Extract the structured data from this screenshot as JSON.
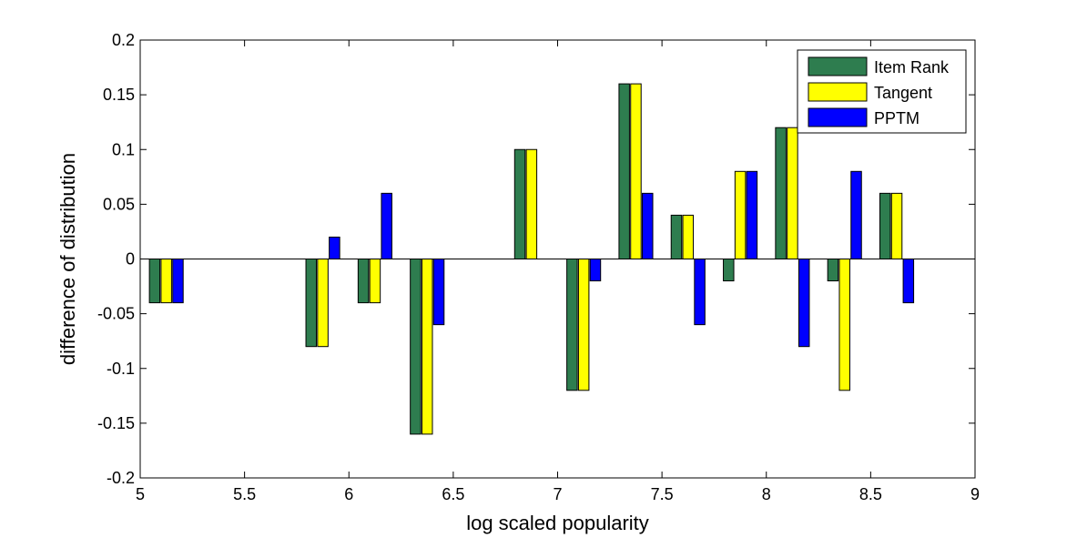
{
  "chart_data": {
    "type": "bar",
    "xlabel": "log scaled popularity",
    "ylabel": "difference of distribution",
    "xlim": [
      5,
      9
    ],
    "ylim": [
      -0.2,
      0.2
    ],
    "xticks": [
      "5",
      "5.5",
      "6",
      "6.5",
      "7",
      "7.5",
      "8",
      "8.5",
      "9"
    ],
    "yticks": [
      "-0.2",
      "-0.15",
      "-0.1",
      "-0.05",
      "0",
      "0.05",
      "0.1",
      "0.15",
      "0.2"
    ],
    "grid": false,
    "legend_position": "top-right",
    "group_centers": [
      5.125,
      5.875,
      6.125,
      6.375,
      6.875,
      7.125,
      7.375,
      7.625,
      7.875,
      8.125,
      8.375,
      8.625
    ],
    "series": [
      {
        "name": "Item Rank",
        "color": "#2e7d4f",
        "values": [
          -0.04,
          -0.08,
          -0.04,
          -0.16,
          0.1,
          -0.12,
          0.16,
          0.04,
          -0.02,
          0.12,
          -0.02,
          0.06
        ]
      },
      {
        "name": "Tangent",
        "color": "#ffff00",
        "values": [
          -0.04,
          -0.08,
          -0.04,
          -0.16,
          0.1,
          -0.12,
          0.16,
          0.04,
          0.08,
          0.12,
          -0.12,
          0.06
        ]
      },
      {
        "name": "PPTM",
        "color": "#0000ff",
        "values": [
          -0.04,
          0.02,
          0.06,
          -0.06,
          null,
          -0.02,
          0.06,
          -0.06,
          0.08,
          -0.08,
          0.08,
          -0.04
        ]
      }
    ]
  }
}
